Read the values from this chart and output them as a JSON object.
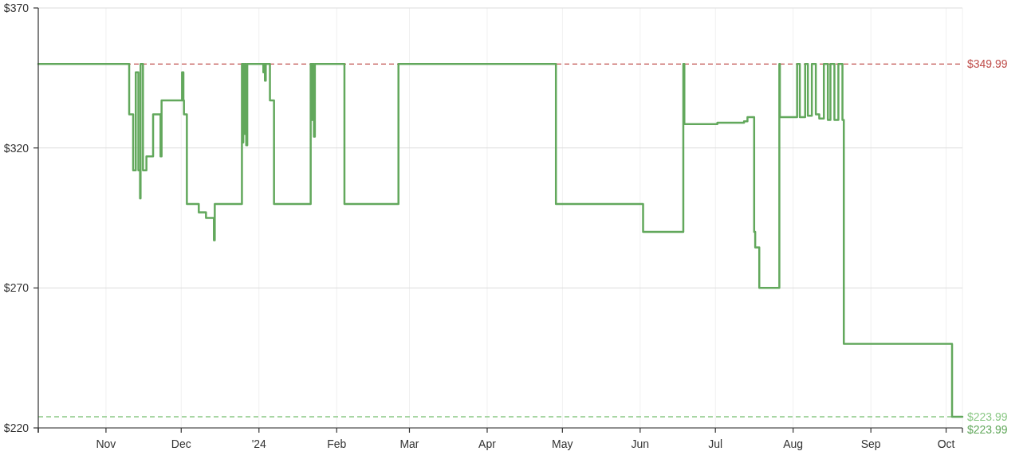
{
  "chart_data": {
    "type": "step",
    "xlim": [
      "2023-10-05",
      "2024-10-07T12:00"
    ],
    "xticks": [
      {
        "value": "2023-10-05",
        "label": null
      },
      {
        "value": "2023-11-01",
        "label": "Nov"
      },
      {
        "value": "2023-12-01",
        "label": "Dec"
      },
      {
        "value": "2024-01-01",
        "label": "'24"
      },
      {
        "value": "2024-02-01",
        "label": "Feb"
      },
      {
        "value": "2024-03-01",
        "label": "Mar"
      },
      {
        "value": "2024-04-01",
        "label": "Apr"
      },
      {
        "value": "2024-05-01",
        "label": "May"
      },
      {
        "value": "2024-06-01",
        "label": "Jun"
      },
      {
        "value": "2024-07-01",
        "label": "Jul"
      },
      {
        "value": "2024-08-01",
        "label": "Aug"
      },
      {
        "value": "2024-09-01",
        "label": "Sep"
      },
      {
        "value": "2024-10-01",
        "label": "Oct"
      },
      {
        "value": "2024-10-07T12:00",
        "label": null
      }
    ],
    "ylim": [
      220,
      370
    ],
    "yticks": [
      {
        "value": 220,
        "label": "$220"
      },
      {
        "value": 270,
        "label": "$270"
      },
      {
        "value": 320,
        "label": "$320"
      },
      {
        "value": 370,
        "label": "$370"
      }
    ],
    "grid": true,
    "series": [
      {
        "color": "#62a85c",
        "x": [
          "2023-10-05",
          "2023-11-10T06:00",
          "2023-11-11T20:00",
          "2023-11-12T21:00",
          "2023-11-13T22:00",
          "2023-11-14T14:00",
          "2023-11-14T19:00",
          "2023-11-15T18:00",
          "2023-11-17T03:00",
          "2023-11-19T19:00",
          "2023-11-22T18:00",
          "2023-11-23T04:00",
          "2023-12-01T08:00",
          "2023-12-01T21:00",
          "2023-12-02T02:00",
          "2023-12-03T06:00",
          "2023-12-08T00:00",
          "2023-12-10T21:00",
          "2023-12-14T01:00",
          "2023-12-14T09:00",
          "2023-12-25T05:00",
          "2023-12-25T10:00",
          "2023-12-25T18:00",
          "2023-12-26T01:00",
          "2023-12-26T09:00",
          "2023-12-26T22:00",
          "2023-12-27T08:00",
          "2024-01-02T18:00",
          "2024-01-03T02:00",
          "2024-01-03T09:00",
          "2024-01-03T17:00",
          "2024-01-05T09:00",
          "2024-01-07T00:00",
          "2024-01-21T15:00",
          "2024-01-22T04:00",
          "2024-01-22T12:00",
          "2024-01-22T22:00",
          "2024-01-23T07:00",
          "2024-02-04T02:00",
          "2024-02-25T15:00",
          "2024-04-28T10:00",
          "2024-06-02T04:00",
          "2024-06-18T05:00",
          "2024-06-18T15:00",
          "2024-07-01T19:00",
          "2024-07-12T10:00",
          "2024-07-13T19:00",
          "2024-07-16T11:00",
          "2024-07-16T21:00",
          "2024-07-18T12:00",
          "2024-07-26T12:00",
          "2024-07-26T17:00",
          "2024-08-02T14:00",
          "2024-08-03T16:00",
          "2024-08-05T19:00",
          "2024-08-06T21:00",
          "2024-08-08T11:00",
          "2024-08-10T01:00",
          "2024-08-11T10:00",
          "2024-08-13T06:00",
          "2024-08-14T20:00",
          "2024-08-15T21:00",
          "2024-08-17T11:00",
          "2024-08-19T01:00",
          "2024-08-20T16:00",
          "2024-08-21T05:00",
          "2024-10-03T09:00",
          "2024-10-07T12:00"
        ],
        "values": [
          349.99,
          332,
          312,
          347,
          312,
          302,
          349.99,
          312,
          317,
          332,
          317,
          337,
          347,
          337,
          332,
          300,
          297,
          295,
          287,
          300,
          349.99,
          322,
          349.99,
          325,
          349.99,
          321,
          349.99,
          347,
          349.99,
          344,
          349.99,
          337,
          300,
          349.99,
          330,
          349.99,
          324,
          349.99,
          300,
          349.99,
          300,
          290,
          349.99,
          328.5,
          329,
          329.5,
          331,
          290,
          284.5,
          270,
          349.99,
          331,
          349.99,
          331,
          349.99,
          331.5,
          349.99,
          332,
          330.5,
          349.99,
          330,
          349.99,
          330,
          349.99,
          330,
          250,
          223.99,
          223.99
        ]
      }
    ],
    "ref_lines": [
      {
        "axis": "y",
        "value": 349.99,
        "label": "$349.99",
        "color": "#c0504d",
        "line_style": "dashed"
      },
      {
        "axis": "y",
        "value": 223.99,
        "label": "$223.99",
        "color": "#8cc987",
        "line_style": "dashed"
      }
    ],
    "annotations": [
      {
        "text": "$223.99",
        "x": "2024-10-07T12:00",
        "y": 223.99
      }
    ]
  }
}
